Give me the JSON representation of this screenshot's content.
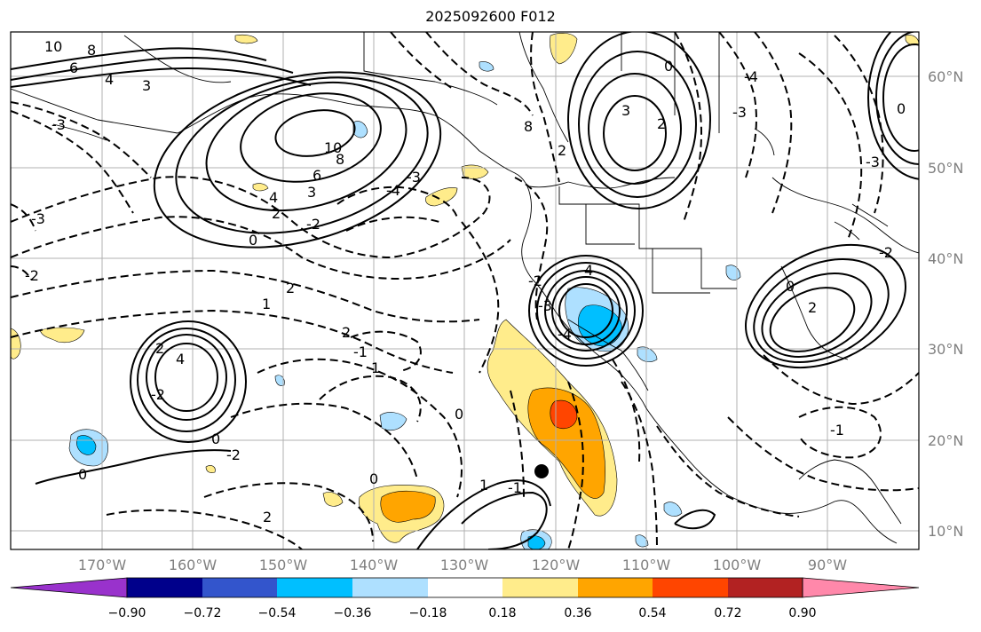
{
  "title": "2025092600 F012",
  "lat_labels": [
    "60°N",
    "50°N",
    "40°N",
    "30°N",
    "20°N",
    "10°N"
  ],
  "lon_labels": [
    "170°W",
    "160°W",
    "150°W",
    "140°W",
    "130°W",
    "120°W",
    "110°W",
    "100°W",
    "90°W"
  ],
  "colorbar": {
    "colors": [
      "#9932CC",
      "#00008B",
      "#3355CC",
      "#00BFFF",
      "#AEE0FF",
      "#FFFFFF",
      "#FFEC8B",
      "#FFA500",
      "#FF4500",
      "#B22222",
      "#FF88AA"
    ],
    "tick_labels": [
      "−0.90",
      "−0.72",
      "−0.54",
      "−0.36",
      "−0.18",
      "0.18",
      "0.36",
      "0.54",
      "0.72",
      "0.90"
    ]
  },
  "contour_labels": [
    "10",
    "8",
    "6",
    "4",
    "3",
    "10",
    "8",
    "6",
    "4",
    "3",
    "2",
    "0",
    "-2",
    "-3",
    "-4",
    "-3",
    "-3",
    "-2",
    "1",
    "2",
    "4",
    "2",
    "0",
    "-2",
    "0",
    "-2",
    "2",
    "-1",
    "1",
    "0",
    "1",
    "-1",
    "0",
    "2",
    "-3",
    "-4",
    "-2",
    "4",
    "3",
    "2",
    "0",
    "8",
    "2",
    "0",
    "-3",
    "-4",
    "-3",
    "2",
    "0",
    "-2",
    "-1"
  ]
}
